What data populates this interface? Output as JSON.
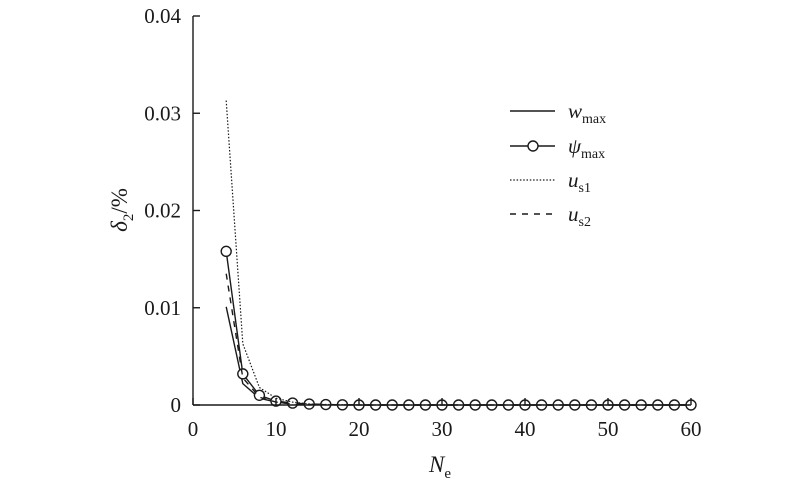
{
  "chart_data": {
    "type": "line",
    "xlabel": {
      "main": "N",
      "sub": "e"
    },
    "ylabel": {
      "main": "δ",
      "sub": "2",
      "suffix": "/%"
    },
    "xlim": [
      0,
      60
    ],
    "ylim": [
      0,
      0.04
    ],
    "xticks": [
      "0",
      "10",
      "20",
      "30",
      "40",
      "50",
      "60"
    ],
    "yticks": [
      "0",
      "0.01",
      "0.02",
      "0.03",
      "0.04"
    ],
    "xtick_values": [
      0,
      10,
      20,
      30,
      40,
      50,
      60
    ],
    "ytick_values": [
      0,
      0.01,
      0.02,
      0.03,
      0.04
    ],
    "grid": false,
    "legend_position": "top-right",
    "series": [
      {
        "name": "w",
        "sub": "max",
        "style": "solid",
        "marker": "none",
        "x": [
          4,
          6,
          8,
          10,
          12,
          14,
          16,
          20,
          30,
          40,
          50,
          60
        ],
        "y": [
          0.0101,
          0.0022,
          0.0007,
          0.0003,
          0.0001,
          5e-05,
          2e-05,
          0,
          0,
          0,
          0,
          0
        ]
      },
      {
        "name": "ψ",
        "sub": "max",
        "style": "solid",
        "marker": "circle",
        "x": [
          4,
          6,
          8,
          10,
          12,
          14,
          16,
          18,
          20,
          22,
          24,
          26,
          28,
          30,
          32,
          34,
          36,
          38,
          40,
          42,
          44,
          46,
          48,
          50,
          52,
          54,
          56,
          58,
          60
        ],
        "y": [
          0.0158,
          0.0032,
          0.001,
          0.0004,
          0.0002,
          0.0001,
          5e-05,
          2e-05,
          0,
          0,
          0,
          0,
          0,
          0,
          0,
          0,
          0,
          0,
          0,
          0,
          0,
          0,
          0,
          0,
          0,
          0,
          0,
          0,
          0
        ]
      },
      {
        "name": "u",
        "sub": "s1",
        "style": "dotted",
        "marker": "none",
        "x": [
          4,
          6,
          8,
          10,
          12,
          14,
          16,
          20,
          30,
          40,
          50,
          60
        ],
        "y": [
          0.0313,
          0.0063,
          0.0018,
          0.0007,
          0.0003,
          0.0001,
          5e-05,
          0,
          0,
          0,
          0,
          0
        ]
      },
      {
        "name": "u",
        "sub": "s2",
        "style": "dashed",
        "marker": "none",
        "x": [
          4,
          6,
          8,
          10,
          12,
          14,
          16,
          20,
          30,
          40,
          50,
          60
        ],
        "y": [
          0.0135,
          0.0028,
          0.0008,
          0.0003,
          0.0001,
          5e-05,
          2e-05,
          0,
          0,
          0,
          0,
          0
        ]
      }
    ]
  }
}
